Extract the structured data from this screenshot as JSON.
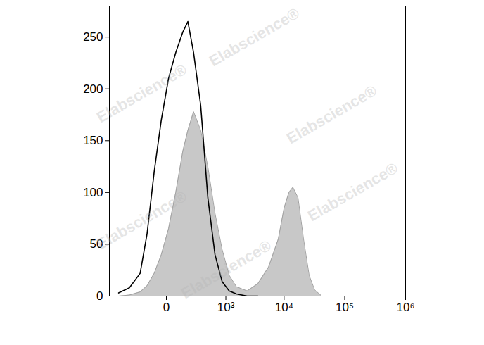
{
  "chart_data": {
    "type": "histogram",
    "log": "x",
    "xlim": [
      -900,
      1000000
    ],
    "xticks": [
      0,
      {
        "value": 1000,
        "label": "10³"
      },
      {
        "value": 10000,
        "label": "10⁴"
      },
      {
        "value": 100000,
        "label": "10⁵"
      },
      {
        "value": 1000000,
        "label": "10⁶"
      }
    ],
    "ylim": [
      0,
      280
    ],
    "yticks": [
      0,
      50,
      100,
      150,
      200,
      250
    ],
    "grid": false,
    "annotations": [
      "Elabscience®"
    ],
    "series": [
      {
        "type": "area",
        "color": "#c8c8c8",
        "x": [
          -600,
          -360,
          -200,
          -127,
          -69,
          -25,
          10,
          50,
          102,
          148,
          212,
          314,
          448,
          624,
          853,
          1154,
          1551,
          2384,
          3637,
          5500,
          8000,
          10000,
          12000,
          14000,
          17000,
          21000,
          26000,
          32000,
          42000
        ],
        "values": [
          0,
          1,
          4,
          10,
          22,
          40,
          65,
          100,
          140,
          160,
          178,
          160,
          125,
          80,
          45,
          20,
          9,
          5,
          12,
          28,
          55,
          85,
          100,
          105,
          95,
          55,
          20,
          6,
          0
        ]
      },
      {
        "type": "line",
        "color": "#000000",
        "x": [
          -600,
          -360,
          -200,
          -127,
          -69,
          -25,
          10,
          50,
          102,
          148,
          212,
          314,
          448,
          624,
          853,
          1154,
          1551,
          2384,
          3637
        ],
        "values": [
          3,
          8,
          22,
          60,
          120,
          170,
          210,
          235,
          255,
          265,
          235,
          184,
          95,
          40,
          14,
          5,
          2,
          0,
          0
        ]
      }
    ]
  }
}
